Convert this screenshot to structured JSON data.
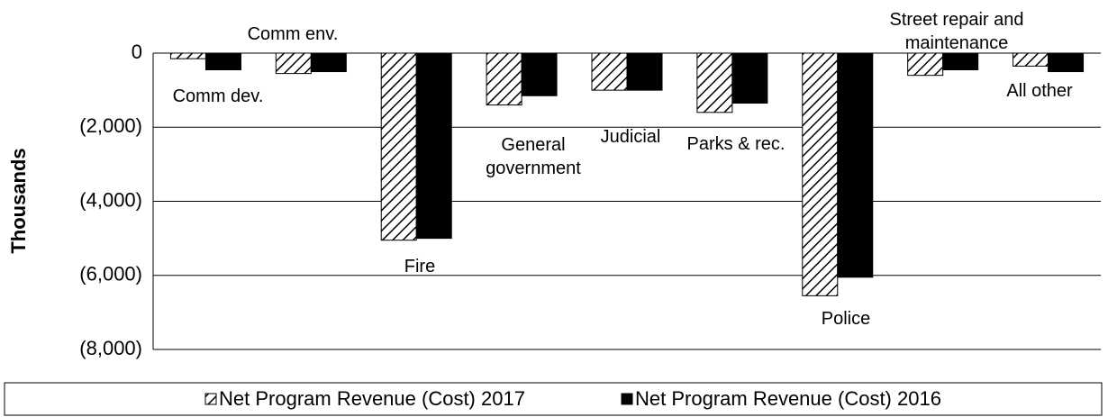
{
  "chart_data": {
    "type": "bar",
    "y_label": "Thousands",
    "categories": [
      "Comm dev.",
      "Comm env.",
      "Fire",
      "General government",
      "Judicial",
      "Parks & rec.",
      "Police",
      "Street repair and maintenance",
      "All other"
    ],
    "series": [
      {
        "name": "Net Program Revenue (Cost) 2017",
        "color": "#000000",
        "pattern": "hatch",
        "values": [
          -150,
          -550,
          -5050,
          -1400,
          -1000,
          -1600,
          -6550,
          -600,
          -350
        ]
      },
      {
        "name": "Net Program Revenue (Cost) 2016",
        "color": "#000000",
        "pattern": "solid",
        "values": [
          -450,
          -500,
          -5000,
          -1150,
          -1000,
          -1350,
          -6050,
          -450,
          -500
        ]
      }
    ],
    "ylim": [
      -8000,
      0
    ],
    "yticks": [
      {
        "value": -8000,
        "label": "(8,000)"
      },
      {
        "value": -6000,
        "label": "(6,000)"
      },
      {
        "value": -4000,
        "label": "(4,000)"
      },
      {
        "value": -2000,
        "label": "(2,000)"
      },
      0
    ],
    "grid": true,
    "legend": "bottom"
  }
}
